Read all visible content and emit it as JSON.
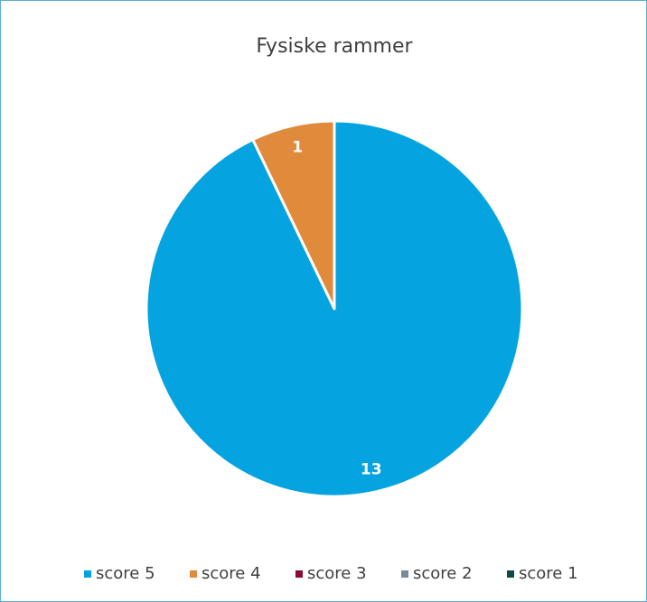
{
  "chart_data": {
    "type": "pie",
    "title": "Fysiske rammer",
    "categories": [
      "score 5",
      "score 4",
      "score 3",
      "score 2",
      "score 1"
    ],
    "values": [
      13,
      1,
      0,
      0,
      0
    ],
    "colors": [
      "#05a3df",
      "#e08a3c",
      "#8c0a34",
      "#7b8a98",
      "#0e4b46"
    ],
    "legend": "bottom"
  }
}
